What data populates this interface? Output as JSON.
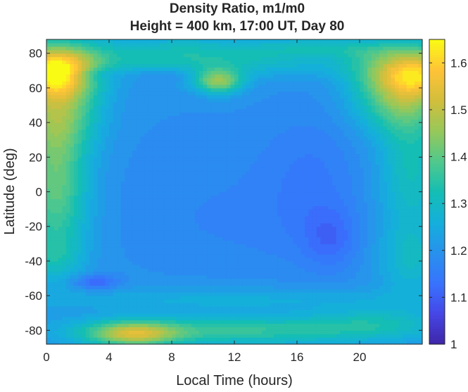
{
  "chart_data": {
    "type": "heatmap",
    "title": [
      "Density Ratio, m1/m0",
      "Height = 400 km, 17:00 UT, Day 80"
    ],
    "xlabel": "Local Time (hours)",
    "ylabel": "Latitude (deg)",
    "xlim": [
      0,
      24
    ],
    "ylim": [
      -88,
      88
    ],
    "x_ticks": [
      0,
      4,
      8,
      12,
      16,
      20
    ],
    "y_ticks": [
      -80,
      -60,
      -40,
      -20,
      0,
      20,
      40,
      60,
      80
    ],
    "colorbar": {
      "range": [
        1.0,
        1.65
      ],
      "ticks": [
        "1",
        "1.1",
        "1.2",
        "1.3",
        "1.4",
        "1.5",
        "1.6"
      ],
      "tick_values": [
        1.0,
        1.1,
        1.2,
        1.3,
        1.4,
        1.5,
        1.6
      ],
      "colormap": "parula"
    },
    "field": {
      "base": 1.2,
      "features": [
        {
          "lt": 0.5,
          "lat": 70,
          "slt": 1.8,
          "slat": 10,
          "amp": 0.34
        },
        {
          "lt": 0.8,
          "lat": 50,
          "slt": 1.8,
          "slat": 18,
          "amp": 0.2
        },
        {
          "lt": 0.6,
          "lat": 20,
          "slt": 1.4,
          "slat": 25,
          "amp": 0.13
        },
        {
          "lt": 0.6,
          "lat": -10,
          "slt": 1.5,
          "slat": 22,
          "amp": 0.12
        },
        {
          "lt": 0.5,
          "lat": -38,
          "slt": 1.3,
          "slat": 10,
          "amp": 0.08
        },
        {
          "lt": 23.5,
          "lat": 68,
          "slt": 2.3,
          "slat": 10,
          "amp": 0.35
        },
        {
          "lt": 22.5,
          "lat": 50,
          "slt": 2.0,
          "slat": 12,
          "amp": 0.15
        },
        {
          "lt": 23.3,
          "lat": 15,
          "slt": 1.5,
          "slat": 30,
          "amp": 0.12
        },
        {
          "lt": 23.3,
          "lat": -40,
          "slt": 1.5,
          "slat": 15,
          "amp": 0.08
        },
        {
          "lt": 11.0,
          "lat": 64,
          "slt": 1.1,
          "slat": 5,
          "amp": 0.25
        },
        {
          "lt": 8.0,
          "lat": 80,
          "slt": 6.0,
          "slat": 7,
          "amp": 0.12
        },
        {
          "lt": 19.0,
          "lat": 82,
          "slt": 4.0,
          "slat": 5,
          "amp": 0.1
        },
        {
          "lt": 5.5,
          "lat": -82,
          "slt": 2.0,
          "slat": 5,
          "amp": 0.25
        },
        {
          "lt": 12.0,
          "lat": -80,
          "slt": 7.0,
          "slat": 6,
          "amp": 0.16
        },
        {
          "lt": 21.0,
          "lat": -75,
          "slt": 3.0,
          "slat": 6,
          "amp": 0.08
        },
        {
          "lt": 12.0,
          "lat": -62,
          "slt": 10.0,
          "slat": 5,
          "amp": 0.06
        },
        {
          "lt": 12.0,
          "lat": 72,
          "slt": 10.0,
          "slat": 5,
          "amp": 0.04
        },
        {
          "lt": 17.0,
          "lat": 5,
          "slt": 2.3,
          "slat": 30,
          "amp": -0.05
        },
        {
          "lt": 18.2,
          "lat": -27,
          "slt": 1.2,
          "slat": 12,
          "amp": -0.06
        },
        {
          "lt": 12.0,
          "lat": -25,
          "slt": 5.0,
          "slat": 18,
          "amp": -0.02
        },
        {
          "lt": 3.1,
          "lat": -52,
          "slt": 1.0,
          "slat": 3,
          "amp": -0.1
        },
        {
          "lt": 3.0,
          "lat": 68,
          "slt": 1.2,
          "slat": 3,
          "amp": -0.06
        },
        {
          "lt": 7.5,
          "lat": 68,
          "slt": 1.5,
          "slat": 3,
          "amp": -0.05
        },
        {
          "lt": 17.5,
          "lat": 78,
          "slt": 1.8,
          "slat": 3,
          "amp": -0.03
        },
        {
          "lt": 10.0,
          "lat": 10,
          "slt": 4.0,
          "slat": 25,
          "amp": -0.02
        }
      ]
    }
  }
}
